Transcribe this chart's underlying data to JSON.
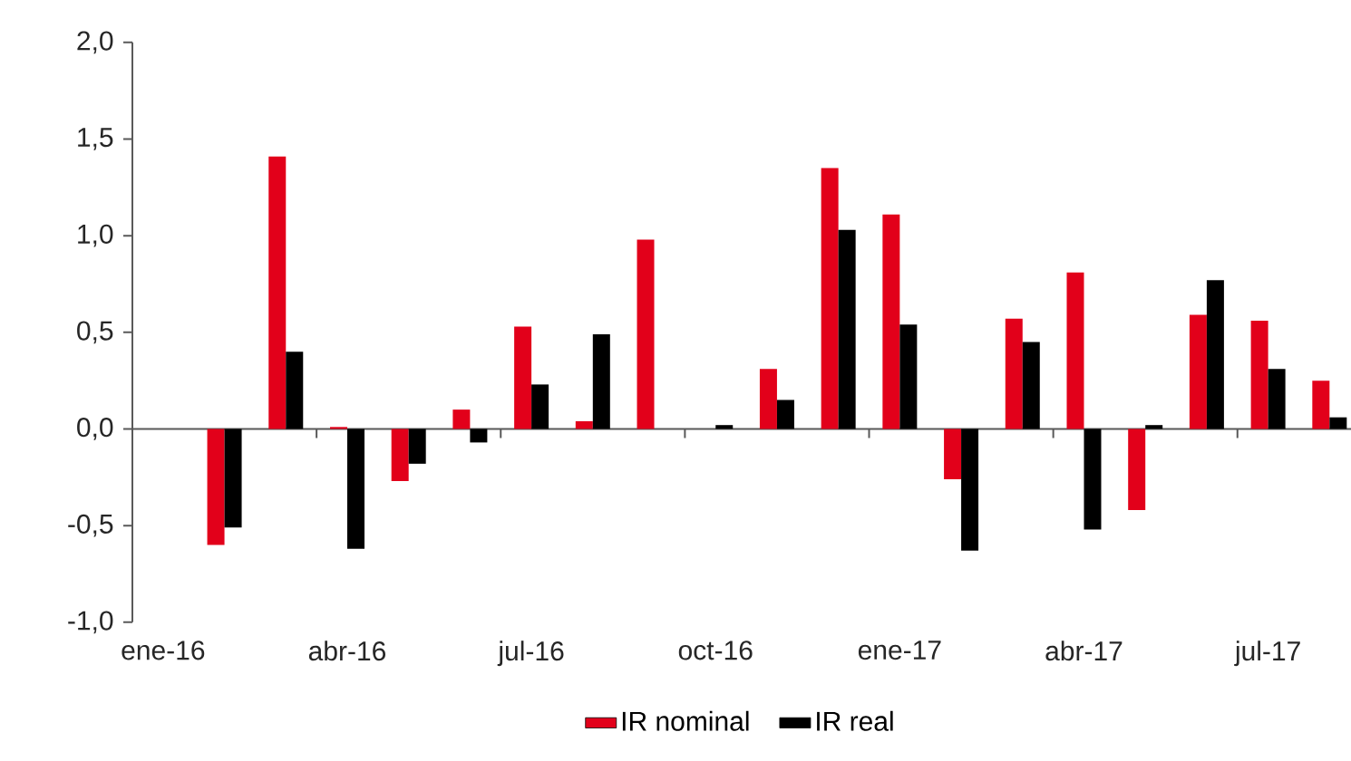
{
  "chart_data": {
    "type": "bar",
    "categories": [
      "ene-16",
      null,
      null,
      "abr-16",
      null,
      null,
      "jul-16",
      null,
      null,
      "oct-16",
      null,
      null,
      "ene-17",
      null,
      null,
      "abr-17",
      null,
      null,
      "jul-17",
      null
    ],
    "series": [
      {
        "name": "IR nominal",
        "color": "#e2001a",
        "values": [
          null,
          -0.6,
          1.41,
          0.01,
          -0.27,
          0.1,
          0.53,
          0.04,
          0.98,
          null,
          0.31,
          1.35,
          1.11,
          -0.26,
          0.57,
          0.81,
          -0.42,
          0.59,
          0.56,
          0.25
        ]
      },
      {
        "name": "IR real",
        "color": "#000000",
        "values": [
          null,
          -0.51,
          0.4,
          -0.62,
          -0.18,
          -0.07,
          0.23,
          0.49,
          null,
          0.02,
          0.15,
          1.03,
          0.54,
          -0.63,
          0.45,
          -0.52,
          0.02,
          0.77,
          0.31,
          0.06
        ]
      }
    ],
    "ylim": [
      -1,
      2
    ],
    "yticks": [
      {
        "value": -1,
        "label": "-1,0"
      },
      {
        "value": -0.5,
        "label": "-0,5"
      },
      {
        "value": 0,
        "label": "0,0"
      },
      {
        "value": 0.5,
        "label": "0,5"
      },
      {
        "value": 1,
        "label": "1,0"
      },
      {
        "value": 1.5,
        "label": "1,5"
      },
      {
        "value": 2,
        "label": "2,0"
      }
    ],
    "legend": "bottom"
  }
}
